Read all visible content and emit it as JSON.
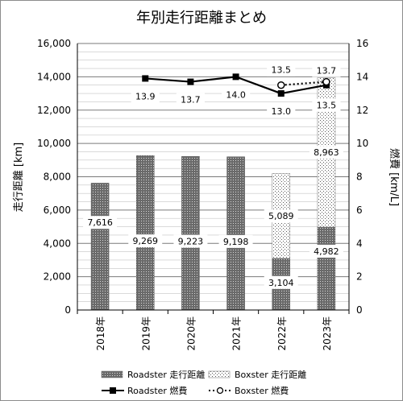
{
  "chart_data": {
    "type": "bar",
    "title": "年別走行距離まとめ",
    "categories": [
      "2018年",
      "2019年",
      "2020年",
      "2021年",
      "2022年",
      "2023年"
    ],
    "series": [
      {
        "name": "Roadster 走行距離",
        "kind": "bar-stacked",
        "axis": "left",
        "values": [
          7616,
          9269,
          9223,
          9198,
          3104,
          4982
        ],
        "labels": [
          "7,616",
          "9,269",
          "9,223",
          "9,198",
          "3,104",
          "4,982"
        ]
      },
      {
        "name": "Boxster 走行距離",
        "kind": "bar-stacked",
        "axis": "left",
        "values": [
          null,
          null,
          null,
          null,
          5089,
          8963
        ],
        "labels": [
          "",
          "",
          "",
          "",
          "5,089",
          "8,963"
        ]
      },
      {
        "name": "Roadster 燃費",
        "kind": "line",
        "axis": "right",
        "values": [
          null,
          13.9,
          13.7,
          14.0,
          13.0,
          13.5
        ],
        "labels": [
          "",
          "13.9",
          "13.7",
          "14.0",
          "13.0",
          "13.5"
        ]
      },
      {
        "name": "Boxster 燃費",
        "kind": "line-dotted",
        "axis": "right",
        "values": [
          null,
          null,
          null,
          null,
          13.5,
          13.7
        ],
        "labels": [
          "",
          "",
          "",
          "",
          "13.5",
          "13.7"
        ]
      }
    ],
    "y_left": {
      "label": "走行距離 [km]",
      "range": [
        0,
        16000
      ],
      "ticks": [
        "0",
        "2,000",
        "4,000",
        "6,000",
        "8,000",
        "10,000",
        "12,000",
        "14,000",
        "16,000"
      ]
    },
    "y_right": {
      "label": "燃費 [km/L]",
      "range": [
        0,
        16
      ],
      "ticks": [
        "0",
        "2",
        "4",
        "6",
        "8",
        "10",
        "12",
        "14",
        "16"
      ]
    },
    "grid": true,
    "legend_position": "bottom"
  }
}
